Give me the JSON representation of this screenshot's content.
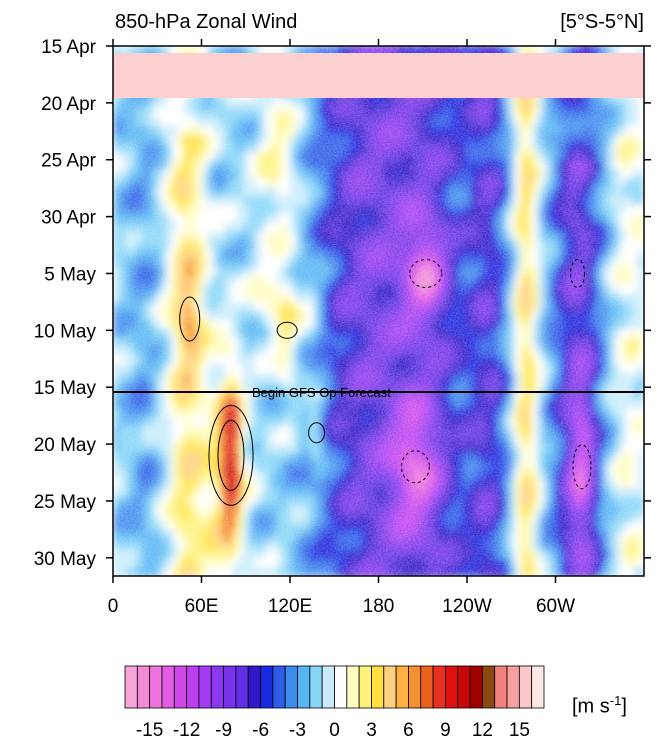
{
  "chart_data": {
    "type": "heatmap",
    "title": "850-hPa Zonal Wind",
    "subtitle": "[5°S-5°N]",
    "xlabel": "",
    "ylabel": "",
    "x_ticks": [
      "0",
      "60E",
      "120E",
      "180",
      "120W",
      "60W"
    ],
    "x_range_deg_east": [
      0,
      360
    ],
    "y_ticks": [
      "15 Apr",
      "20 Apr",
      "25 Apr",
      "30 Apr",
      "5 May",
      "10 May",
      "15 May",
      "20 May",
      "25 May",
      "30 May"
    ],
    "y_range": [
      "15 Apr",
      "31 May"
    ],
    "missing_period": [
      "15 Apr",
      "19 Apr"
    ],
    "annotation": "Begin GFS Op Forecast",
    "forecast_start": "15 May",
    "colorbar": {
      "units": "[m s-1]",
      "tick_labels": [
        "-15",
        "-12",
        "-9",
        "-6",
        "-3",
        "0",
        "3",
        "6",
        "9",
        "12",
        "15"
      ],
      "levels": [
        -16,
        -15,
        -14,
        -13,
        -12,
        -11,
        -10,
        -9,
        -8,
        -7,
        -6,
        -5,
        -4,
        -3,
        -2,
        -1,
        0,
        1,
        2,
        3,
        4,
        5,
        6,
        7,
        8,
        9,
        10,
        11,
        12,
        13,
        14,
        15,
        16
      ],
      "colors": [
        "#f8a4d8",
        "#f28ad6",
        "#ec74dc",
        "#e25ce4",
        "#d048ea",
        "#bc3ef0",
        "#a43cf2",
        "#8c36f0",
        "#7832e8",
        "#6030e4",
        "#3018c8",
        "#1a28e0",
        "#2c5ce8",
        "#3c8cee",
        "#56b6f4",
        "#86d6f8",
        "#c8ecfc",
        "#ffffff",
        "#fffcc0",
        "#fff27a",
        "#ffe040",
        "#ffd080",
        "#fcb040",
        "#f49030",
        "#ec6020",
        "#e83020",
        "#e01010",
        "#c80808",
        "#a00000",
        "#8a4a10",
        "#f58080",
        "#f7a0a0",
        "#fac8c8",
        "#fde8e8"
      ]
    },
    "features": [
      {
        "name": "westerly band near 45E-60E",
        "lon": 52,
        "start": "25 Apr",
        "end": "31 May",
        "max": 9
      },
      {
        "name": "westerly core near 65E-90E",
        "lon": 75,
        "start": "13 May",
        "end": "31 May",
        "max": 15
      },
      {
        "name": "westerly patches near 100E-150E",
        "lon": 120,
        "start": "24 Apr",
        "end": "21 May",
        "max": 7
      },
      {
        "name": "easterly maxima near 150W",
        "lon": 210,
        "start": "27 Apr",
        "end": "31 May",
        "min": -13
      },
      {
        "name": "easterly maxima near 60W-80W",
        "lon": 300,
        "start": "5 May",
        "end": "31 May",
        "min": -12
      }
    ]
  }
}
